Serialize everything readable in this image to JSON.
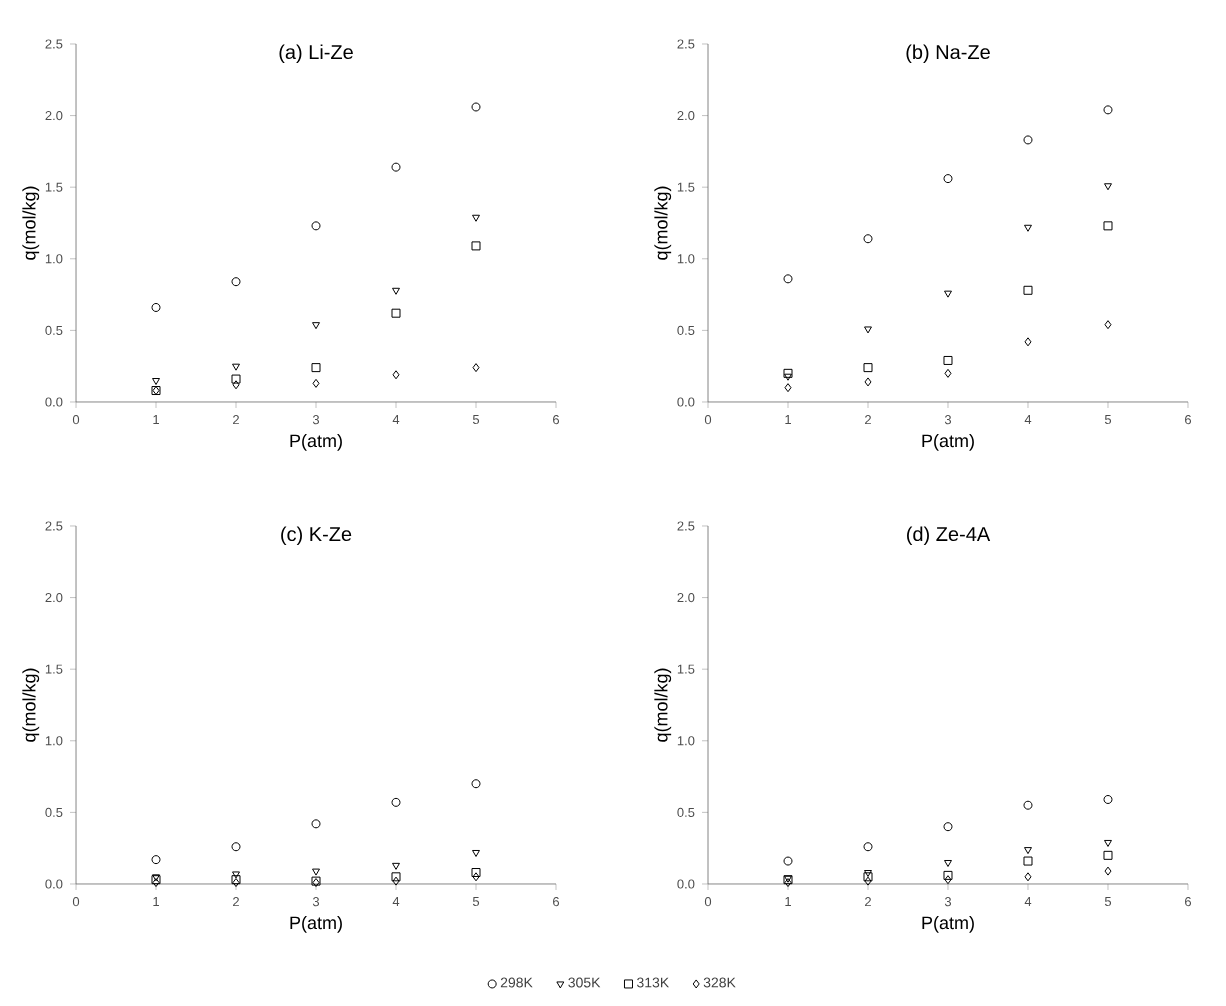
{
  "chart_data": [
    {
      "type": "scatter",
      "title": "(a) Li-Ze",
      "xlabel": "P(atm)",
      "ylabel": "q(mol/kg)",
      "x": [
        1,
        2,
        3,
        4,
        5
      ],
      "xlim": [
        0,
        6
      ],
      "xticks": [
        0,
        1,
        2,
        3,
        4,
        5,
        6
      ],
      "ylim": [
        0,
        2.5
      ],
      "yticks": [
        {
          "value": 0,
          "label": "0.0"
        },
        {
          "value": 0.5,
          "label": "0.5"
        },
        {
          "value": 1,
          "label": "1.0"
        },
        {
          "value": 1.5,
          "label": "1.5"
        },
        {
          "value": 2,
          "label": "2.0"
        },
        {
          "value": 2.5,
          "label": "2.5"
        }
      ],
      "series": [
        {
          "color": "#000000",
          "marker": "circle",
          "values": [
            0.66,
            0.84,
            1.23,
            1.64,
            2.06
          ]
        },
        {
          "color": "#000000",
          "marker": "triangle",
          "values": [
            0.15,
            0.25,
            0.54,
            0.78,
            1.29
          ]
        },
        {
          "color": "#000000",
          "marker": "square",
          "values": [
            0.08,
            0.16,
            0.24,
            0.62,
            1.09
          ]
        },
        {
          "color": "#000000",
          "marker": "diamond",
          "values": [
            0.08,
            0.12,
            0.13,
            0.19,
            0.24
          ]
        }
      ]
    },
    {
      "type": "scatter",
      "title": "(b) Na-Ze",
      "xlabel": "P(atm)",
      "ylabel": "q(mol/kg)",
      "x": [
        1,
        2,
        3,
        4,
        5
      ],
      "xlim": [
        0,
        6
      ],
      "xticks": [
        0,
        1,
        2,
        3,
        4,
        5,
        6
      ],
      "ylim": [
        0,
        2.5
      ],
      "yticks": [
        {
          "value": 0,
          "label": "0.0"
        },
        {
          "value": 0.5,
          "label": "0.5"
        },
        {
          "value": 1,
          "label": "1.0"
        },
        {
          "value": 1.5,
          "label": "1.5"
        },
        {
          "value": 2,
          "label": "2.0"
        },
        {
          "value": 2.5,
          "label": "2.5"
        }
      ],
      "series": [
        {
          "color": "#000000",
          "marker": "circle",
          "values": [
            0.86,
            1.14,
            1.56,
            1.83,
            2.04
          ]
        },
        {
          "color": "#000000",
          "marker": "triangle",
          "values": [
            0.18,
            0.51,
            0.76,
            1.22,
            1.51
          ]
        },
        {
          "color": "#000000",
          "marker": "square",
          "values": [
            0.2,
            0.24,
            0.29,
            0.78,
            1.23
          ]
        },
        {
          "color": "#000000",
          "marker": "diamond",
          "values": [
            0.1,
            0.14,
            0.2,
            0.42,
            0.54
          ]
        }
      ]
    },
    {
      "type": "scatter",
      "title": "(c) K-Ze",
      "xlabel": "P(atm)",
      "ylabel": "q(mol/kg)",
      "x": [
        1,
        2,
        3,
        4,
        5
      ],
      "xlim": [
        0,
        6
      ],
      "xticks": [
        0,
        1,
        2,
        3,
        4,
        5,
        6
      ],
      "ylim": [
        0,
        2.5
      ],
      "yticks": [
        {
          "value": 0,
          "label": "0.0"
        },
        {
          "value": 0.5,
          "label": "0.5"
        },
        {
          "value": 1,
          "label": "1.0"
        },
        {
          "value": 1.5,
          "label": "1.5"
        },
        {
          "value": 2,
          "label": "2.0"
        },
        {
          "value": 2.5,
          "label": "2.5"
        }
      ],
      "series": [
        {
          "color": "#000000",
          "marker": "circle",
          "values": [
            0.17,
            0.26,
            0.42,
            0.57,
            0.7
          ]
        },
        {
          "color": "#000000",
          "marker": "triangle",
          "values": [
            0.05,
            0.07,
            0.09,
            0.13,
            0.22
          ]
        },
        {
          "color": "#000000",
          "marker": "square",
          "values": [
            0.03,
            0.03,
            0.02,
            0.05,
            0.08
          ]
        },
        {
          "color": "#000000",
          "marker": "diamond",
          "values": [
            0.01,
            0.01,
            0.01,
            0.02,
            0.05
          ]
        }
      ]
    },
    {
      "type": "scatter",
      "title": "(d) Ze-4A",
      "xlabel": "P(atm)",
      "ylabel": "q(mol/kg)",
      "x": [
        1,
        2,
        3,
        4,
        5
      ],
      "xlim": [
        0,
        6
      ],
      "xticks": [
        0,
        1,
        2,
        3,
        4,
        5,
        6
      ],
      "ylim": [
        0,
        2.5
      ],
      "yticks": [
        {
          "value": 0,
          "label": "0.0"
        },
        {
          "value": 0.5,
          "label": "0.5"
        },
        {
          "value": 1,
          "label": "1.0"
        },
        {
          "value": 1.5,
          "label": "1.5"
        },
        {
          "value": 2,
          "label": "2.0"
        },
        {
          "value": 2.5,
          "label": "2.5"
        }
      ],
      "legend": "bottom",
      "series": [
        {
          "name": "298K",
          "color": "#000000",
          "marker": "circle",
          "values": [
            0.16,
            0.26,
            0.4,
            0.55,
            0.59
          ]
        },
        {
          "name": "305K",
          "color": "#000000",
          "marker": "triangle",
          "values": [
            0.04,
            0.08,
            0.15,
            0.24,
            0.29
          ]
        },
        {
          "name": "313K",
          "color": "#000000",
          "marker": "square",
          "values": [
            0.03,
            0.05,
            0.06,
            0.16,
            0.2
          ]
        },
        {
          "name": "328K",
          "color": "#000000",
          "marker": "diamond",
          "values": [
            0.01,
            0.02,
            0.03,
            0.05,
            0.09
          ]
        }
      ]
    }
  ]
}
